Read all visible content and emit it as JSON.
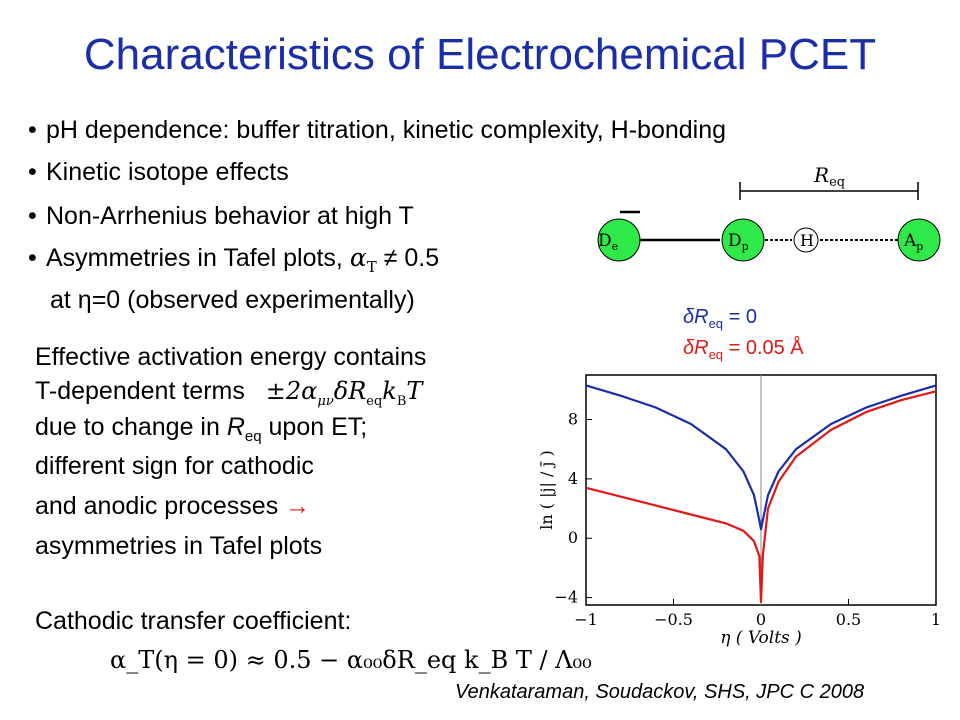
{
  "title": "Characteristics of Electrochemical PCET",
  "bullets": {
    "b1": "pH dependence:  buffer titration, kinetic complexity,  H-bonding",
    "b2": "Kinetic isotope effects",
    "b3": "Non-Arrhenius behavior at high T",
    "b4_prefix": "Asymmetries in Tafel plots,",
    "b4_symbol": "α",
    "b4_sub": "T",
    "b4_suffix": " ≠ 0.5",
    "b4_cont": "at η=0 (observed experimentally)"
  },
  "paragraph": {
    "line1": "Effective activation energy contains",
    "line2": "T-dependent terms",
    "line2_formula": "±2α",
    "line2_formula_sub": "μν",
    "line2_formula_rest": "δR",
    "line2_formula_sub2": "eq",
    "line2_formula_end": "k",
    "line2_formula_sub3": "B",
    "line2_formula_T": "T",
    "line3_a": "due to change in ",
    "line3_R": "R",
    "line3_sub": "eq",
    "line3_b": " upon ET;",
    "line4": "different sign for cathodic",
    "line5": "and anodic processes",
    "line5_arrow": "→",
    "line6": "asymmetries in Tafel plots",
    "line7": "Cathodic transfer coefficient:",
    "bottom_formula": "α_T(η = 0) ≈ 0.5 − α₀₀δR_eq k_B T / Λ₀₀"
  },
  "diagram": {
    "req_label": "R",
    "req_sub": "eq",
    "node_de": "D",
    "node_de_sub": "e",
    "node_dp": "D",
    "node_dp_sub": "p",
    "node_h": "H",
    "node_ap": "A",
    "node_ap_sub": "p",
    "node_color": "#2fe84a"
  },
  "legend": {
    "blue": {
      "prefix": "δR",
      "sub": "eq",
      "suffix": " = 0",
      "color": "#1a2ea8"
    },
    "red": {
      "prefix": "δR",
      "sub": "eq",
      "suffix": " = 0.05 Å",
      "color": "#e01818"
    }
  },
  "chart_data": {
    "type": "line",
    "xlabel": "η ( Volts )",
    "ylabel": "ln ( |j| / j̄ )",
    "xlim": [
      -1,
      1
    ],
    "ylim": [
      -4.5,
      11
    ],
    "xticks": [
      "−1",
      "−0.5",
      "0",
      "0.5",
      "1"
    ],
    "yticks": [
      "−4",
      "0",
      "4",
      "8"
    ],
    "series": [
      {
        "color": "#1a2ea8",
        "x": [
          -1.0,
          -0.8,
          -0.6,
          -0.4,
          -0.2,
          -0.1,
          -0.04,
          -0.01,
          0.0,
          0.01,
          0.04,
          0.1,
          0.2,
          0.4,
          0.6,
          0.8,
          1.0
        ],
        "y": [
          10.3,
          9.6,
          8.8,
          7.7,
          6.0,
          4.5,
          2.9,
          1.2,
          0.6,
          1.2,
          2.9,
          4.5,
          6.0,
          7.7,
          8.8,
          9.6,
          10.3
        ]
      },
      {
        "color": "#e01818",
        "x": [
          -1.0,
          -0.8,
          -0.6,
          -0.4,
          -0.2,
          -0.1,
          -0.04,
          -0.01,
          0.0,
          0.01,
          0.04,
          0.1,
          0.2,
          0.4,
          0.6,
          0.8,
          1.0
        ],
        "y": [
          3.4,
          2.8,
          2.2,
          1.6,
          1.0,
          0.5,
          -0.2,
          -1.2,
          -4.3,
          -1.2,
          2.0,
          3.8,
          5.5,
          7.3,
          8.5,
          9.3,
          9.9
        ]
      }
    ]
  }
}
